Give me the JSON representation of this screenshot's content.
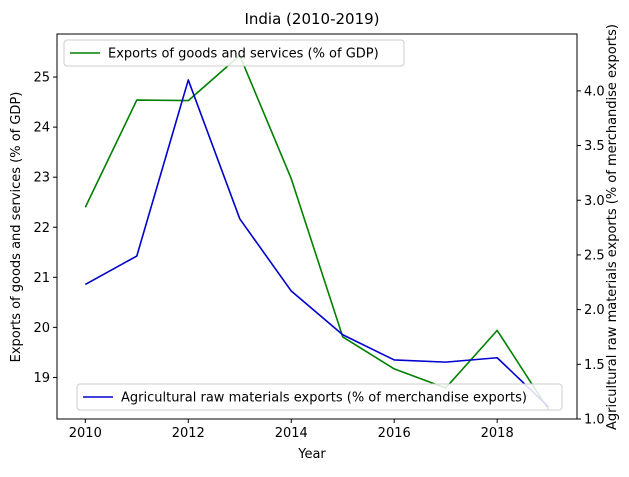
{
  "chart_data": {
    "type": "line",
    "title": "India (2010-2019)",
    "xlabel": "Year",
    "x": [
      2010,
      2011,
      2012,
      2013,
      2014,
      2015,
      2016,
      2017,
      2018,
      2019
    ],
    "xlim": [
      2009.45,
      2019.55
    ],
    "x_ticks": [
      "2010",
      "2012",
      "2014",
      "2016",
      "2018"
    ],
    "x_tick_values": [
      2010,
      2012,
      2014,
      2016,
      2018
    ],
    "left_axis": {
      "label": "Exports of goods and services (% of GDP)",
      "ylim": [
        18.17,
        25.86
      ],
      "ticks": [
        "19",
        "20",
        "21",
        "22",
        "23",
        "24",
        "25"
      ],
      "tick_values": [
        19,
        20,
        21,
        22,
        23,
        24,
        25
      ]
    },
    "right_axis": {
      "label": "Agricultural raw materials exports (% of merchandise exports)",
      "ylim": [
        1.0,
        4.52
      ],
      "ticks": [
        "1.0",
        "1.5",
        "2.0",
        "2.5",
        "3.0",
        "3.5",
        "4.0"
      ],
      "tick_values": [
        1.0,
        1.5,
        2.0,
        2.5,
        3.0,
        3.5,
        4.0
      ]
    },
    "series": [
      {
        "name": "Exports of goods and services (% of GDP)",
        "axis": "left",
        "color": "#008000",
        "values": [
          22.4,
          24.54,
          24.53,
          25.43,
          22.97,
          19.81,
          19.17,
          18.79,
          19.94,
          18.35
        ]
      },
      {
        "name": "Agricultural raw materials exports (% of merchandise exports)",
        "axis": "right",
        "color": "#0000cd",
        "values": [
          2.23,
          2.49,
          4.1,
          2.83,
          2.17,
          1.77,
          1.54,
          1.52,
          1.56,
          1.11
        ]
      }
    ],
    "legend_left_position": "upper-left",
    "legend_right_position": "lower-right",
    "grid": false
  }
}
